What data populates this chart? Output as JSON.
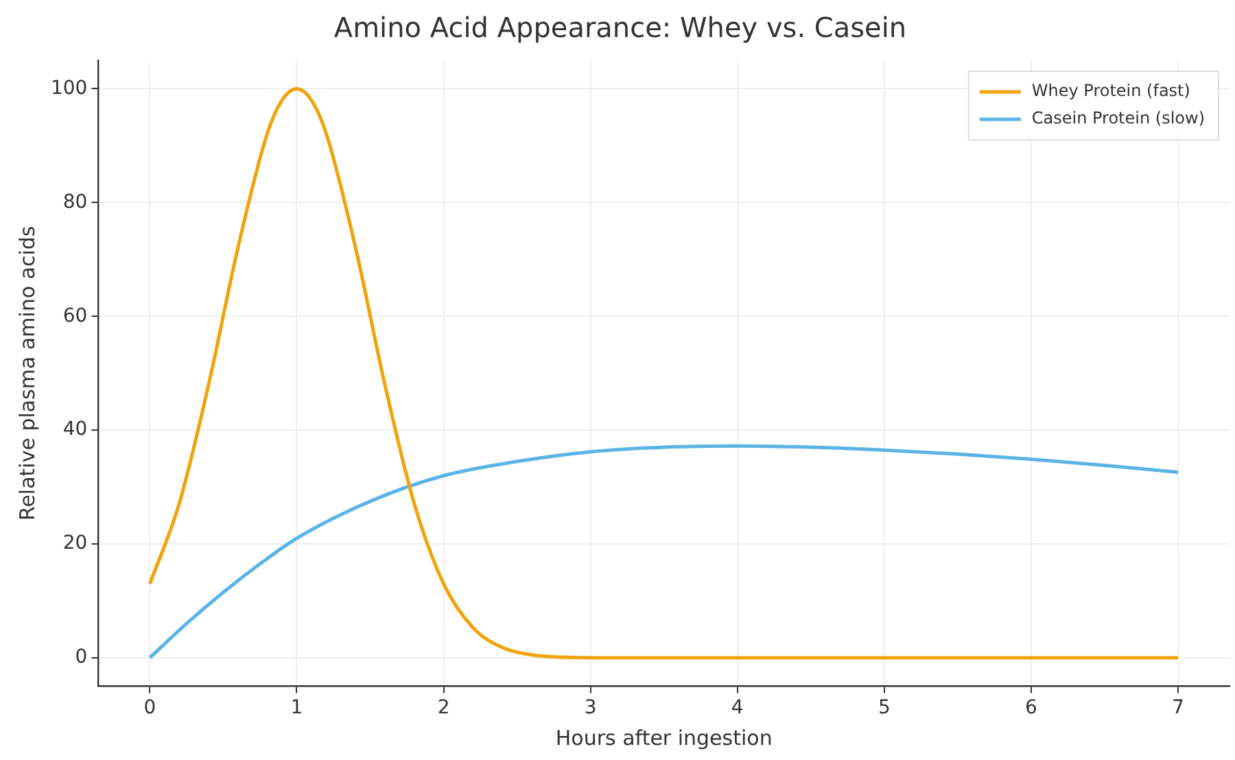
{
  "chart_data": {
    "type": "line",
    "title": "Amino Acid Appearance: Whey vs. Casein",
    "xlabel": "Hours after ingestion",
    "ylabel": "Relative plasma amino acids",
    "xlim": [
      -0.35,
      7.35
    ],
    "ylim": [
      -5,
      105
    ],
    "xticks": [
      0,
      1,
      2,
      3,
      4,
      5,
      6,
      7
    ],
    "yticks": [
      0,
      20,
      40,
      60,
      80,
      100
    ],
    "grid": true,
    "legend": "top right",
    "marker": "none",
    "line_style": "solid",
    "series": [
      {
        "name": "Whey Protein (fast)",
        "color": "#f0a30a",
        "x": [
          0,
          0.2,
          0.4,
          0.6,
          0.8,
          0.9,
          1,
          1.1,
          1.2,
          1.4,
          1.6,
          1.8,
          2,
          2.2,
          2.4,
          2.6,
          2.8,
          3,
          4,
          5,
          6,
          7
        ],
        "values": [
          13,
          27.1,
          48,
          72.1,
          92.2,
          98,
          100,
          98,
          92.2,
          72.1,
          48,
          27.1,
          13,
          5.3,
          1.8,
          0.5,
          0.1,
          0,
          0,
          0,
          0,
          0
        ]
      },
      {
        "name": "Casein Protein (slow)",
        "color": "#5ab4e5",
        "x": [
          0,
          0.25,
          0.5,
          0.75,
          1,
          1.5,
          2,
          2.5,
          3,
          3.5,
          4,
          4.5,
          5,
          5.5,
          6,
          6.5,
          7
        ],
        "values": [
          0,
          6,
          11.5,
          16.5,
          21,
          27.5,
          32,
          34.5,
          36.2,
          37,
          37.2,
          37,
          36.5,
          35.8,
          34.9,
          33.8,
          32.6
        ]
      }
    ]
  }
}
